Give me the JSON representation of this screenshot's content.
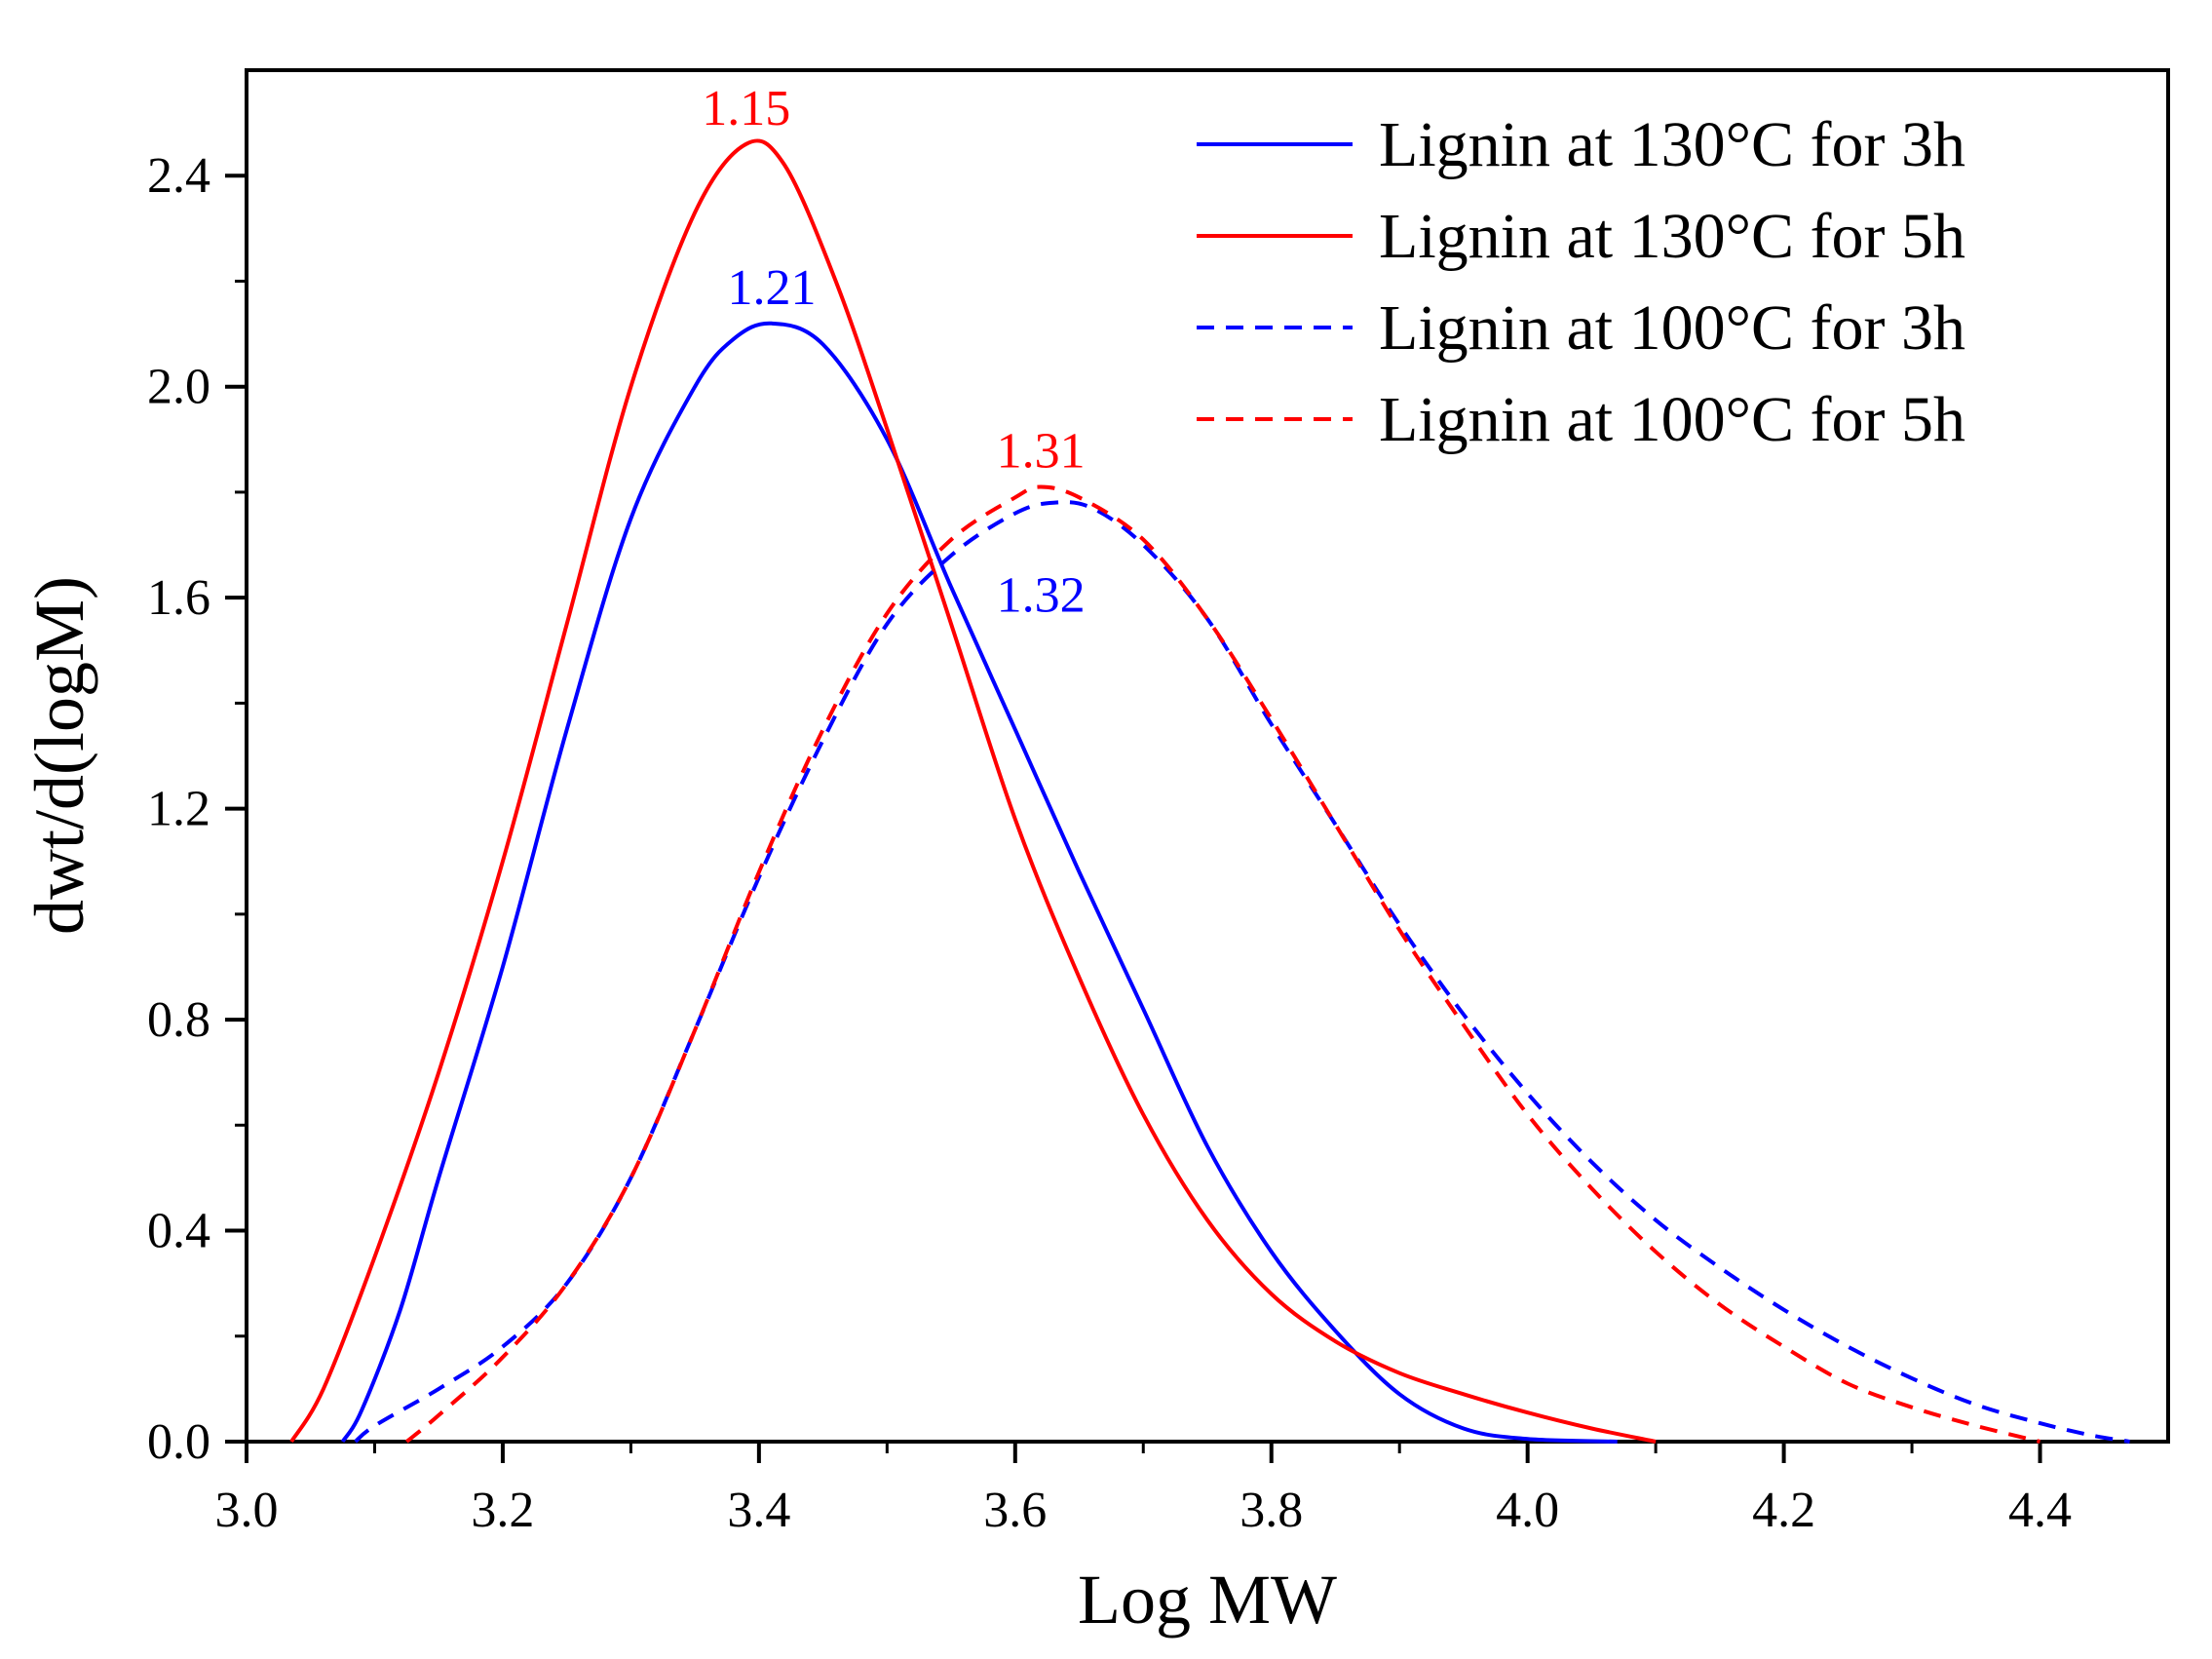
{
  "chart_data": {
    "type": "line",
    "title": "",
    "xlabel": "Log MW",
    "ylabel": "dwt/d(logM)",
    "xlim": [
      3.0,
      4.5
    ],
    "ylim": [
      0.0,
      2.6
    ],
    "x_major_ticks": [
      3.0,
      3.2,
      3.4,
      3.6,
      3.8,
      4.0,
      4.2,
      4.4
    ],
    "x_tick_labels": [
      "3.0",
      "3.2",
      "3.4",
      "3.6",
      "3.8",
      "4.0",
      "4.2",
      "4.4"
    ],
    "y_major_ticks": [
      0.0,
      0.4,
      0.8,
      1.2,
      1.6,
      2.0,
      2.4
    ],
    "y_tick_labels": [
      "0.0",
      "0.4",
      "0.8",
      "1.2",
      "1.6",
      "2.0",
      "2.4"
    ],
    "grid": false,
    "legend_position": "top-right",
    "series": [
      {
        "name": "Lignin at 130°C for 3h",
        "color": "#0000ff",
        "dash": "solid",
        "points": [
          [
            3.075,
            0.0
          ],
          [
            3.09,
            0.06
          ],
          [
            3.12,
            0.25
          ],
          [
            3.15,
            0.5
          ],
          [
            3.2,
            0.9
          ],
          [
            3.25,
            1.35
          ],
          [
            3.3,
            1.75
          ],
          [
            3.35,
            2.0
          ],
          [
            3.38,
            2.09
          ],
          [
            3.41,
            2.12
          ],
          [
            3.45,
            2.08
          ],
          [
            3.5,
            1.9
          ],
          [
            3.55,
            1.62
          ],
          [
            3.6,
            1.35
          ],
          [
            3.65,
            1.08
          ],
          [
            3.7,
            0.82
          ],
          [
            3.75,
            0.56
          ],
          [
            3.8,
            0.36
          ],
          [
            3.85,
            0.21
          ],
          [
            3.9,
            0.09
          ],
          [
            3.95,
            0.025
          ],
          [
            4.0,
            0.005
          ],
          [
            4.07,
            0.0
          ]
        ]
      },
      {
        "name": "Lignin at 130°C for 5h",
        "color": "#ff0000",
        "dash": "solid",
        "points": [
          [
            3.035,
            0.0
          ],
          [
            3.06,
            0.1
          ],
          [
            3.1,
            0.35
          ],
          [
            3.15,
            0.7
          ],
          [
            3.2,
            1.1
          ],
          [
            3.25,
            1.55
          ],
          [
            3.3,
            2.0
          ],
          [
            3.35,
            2.33
          ],
          [
            3.39,
            2.46
          ],
          [
            3.42,
            2.42
          ],
          [
            3.46,
            2.2
          ],
          [
            3.5,
            1.92
          ],
          [
            3.55,
            1.55
          ],
          [
            3.6,
            1.18
          ],
          [
            3.65,
            0.88
          ],
          [
            3.7,
            0.62
          ],
          [
            3.75,
            0.42
          ],
          [
            3.8,
            0.28
          ],
          [
            3.85,
            0.19
          ],
          [
            3.9,
            0.13
          ],
          [
            3.95,
            0.09
          ],
          [
            4.0,
            0.055
          ],
          [
            4.05,
            0.025
          ],
          [
            4.1,
            0.0
          ]
        ]
      },
      {
        "name": "Lignin at 100°C for 3h",
        "color": "#0000ff",
        "dash": "dashed",
        "points": [
          [
            3.085,
            0.0
          ],
          [
            3.1,
            0.03
          ],
          [
            3.15,
            0.1
          ],
          [
            3.2,
            0.18
          ],
          [
            3.25,
            0.3
          ],
          [
            3.3,
            0.5
          ],
          [
            3.35,
            0.78
          ],
          [
            3.4,
            1.07
          ],
          [
            3.45,
            1.33
          ],
          [
            3.5,
            1.55
          ],
          [
            3.55,
            1.68
          ],
          [
            3.6,
            1.76
          ],
          [
            3.63,
            1.78
          ],
          [
            3.66,
            1.77
          ],
          [
            3.7,
            1.7
          ],
          [
            3.75,
            1.56
          ],
          [
            3.8,
            1.36
          ],
          [
            3.85,
            1.17
          ],
          [
            3.9,
            0.98
          ],
          [
            3.95,
            0.81
          ],
          [
            4.0,
            0.66
          ],
          [
            4.05,
            0.53
          ],
          [
            4.1,
            0.42
          ],
          [
            4.15,
            0.33
          ],
          [
            4.2,
            0.25
          ],
          [
            4.25,
            0.18
          ],
          [
            4.3,
            0.12
          ],
          [
            4.35,
            0.07
          ],
          [
            4.4,
            0.035
          ],
          [
            4.44,
            0.012
          ],
          [
            4.47,
            0.0
          ]
        ]
      },
      {
        "name": "Lignin at 100°C for 5h",
        "color": "#ff0000",
        "dash": "dashed",
        "points": [
          [
            3.125,
            0.0
          ],
          [
            3.15,
            0.05
          ],
          [
            3.2,
            0.16
          ],
          [
            3.25,
            0.3
          ],
          [
            3.3,
            0.5
          ],
          [
            3.35,
            0.78
          ],
          [
            3.4,
            1.08
          ],
          [
            3.45,
            1.35
          ],
          [
            3.5,
            1.57
          ],
          [
            3.55,
            1.71
          ],
          [
            3.6,
            1.79
          ],
          [
            3.62,
            1.81
          ],
          [
            3.65,
            1.79
          ],
          [
            3.7,
            1.71
          ],
          [
            3.75,
            1.56
          ],
          [
            3.8,
            1.37
          ],
          [
            3.85,
            1.17
          ],
          [
            3.9,
            0.97
          ],
          [
            3.95,
            0.79
          ],
          [
            4.0,
            0.62
          ],
          [
            4.05,
            0.48
          ],
          [
            4.1,
            0.36
          ],
          [
            4.15,
            0.26
          ],
          [
            4.2,
            0.18
          ],
          [
            4.25,
            0.11
          ],
          [
            4.3,
            0.065
          ],
          [
            4.35,
            0.03
          ],
          [
            4.4,
            0.0
          ]
        ]
      }
    ],
    "annotations": [
      {
        "text": "1.15",
        "color": "#ff0000",
        "x": 3.39,
        "y": 2.46
      },
      {
        "text": "1.21",
        "color": "#0000ff",
        "x": 3.41,
        "y": 2.12
      },
      {
        "text": "1.31",
        "color": "#ff0000",
        "x": 3.62,
        "y": 1.81
      },
      {
        "text": "1.32",
        "color": "#0000ff",
        "x": 3.62,
        "y": 1.62
      }
    ]
  }
}
